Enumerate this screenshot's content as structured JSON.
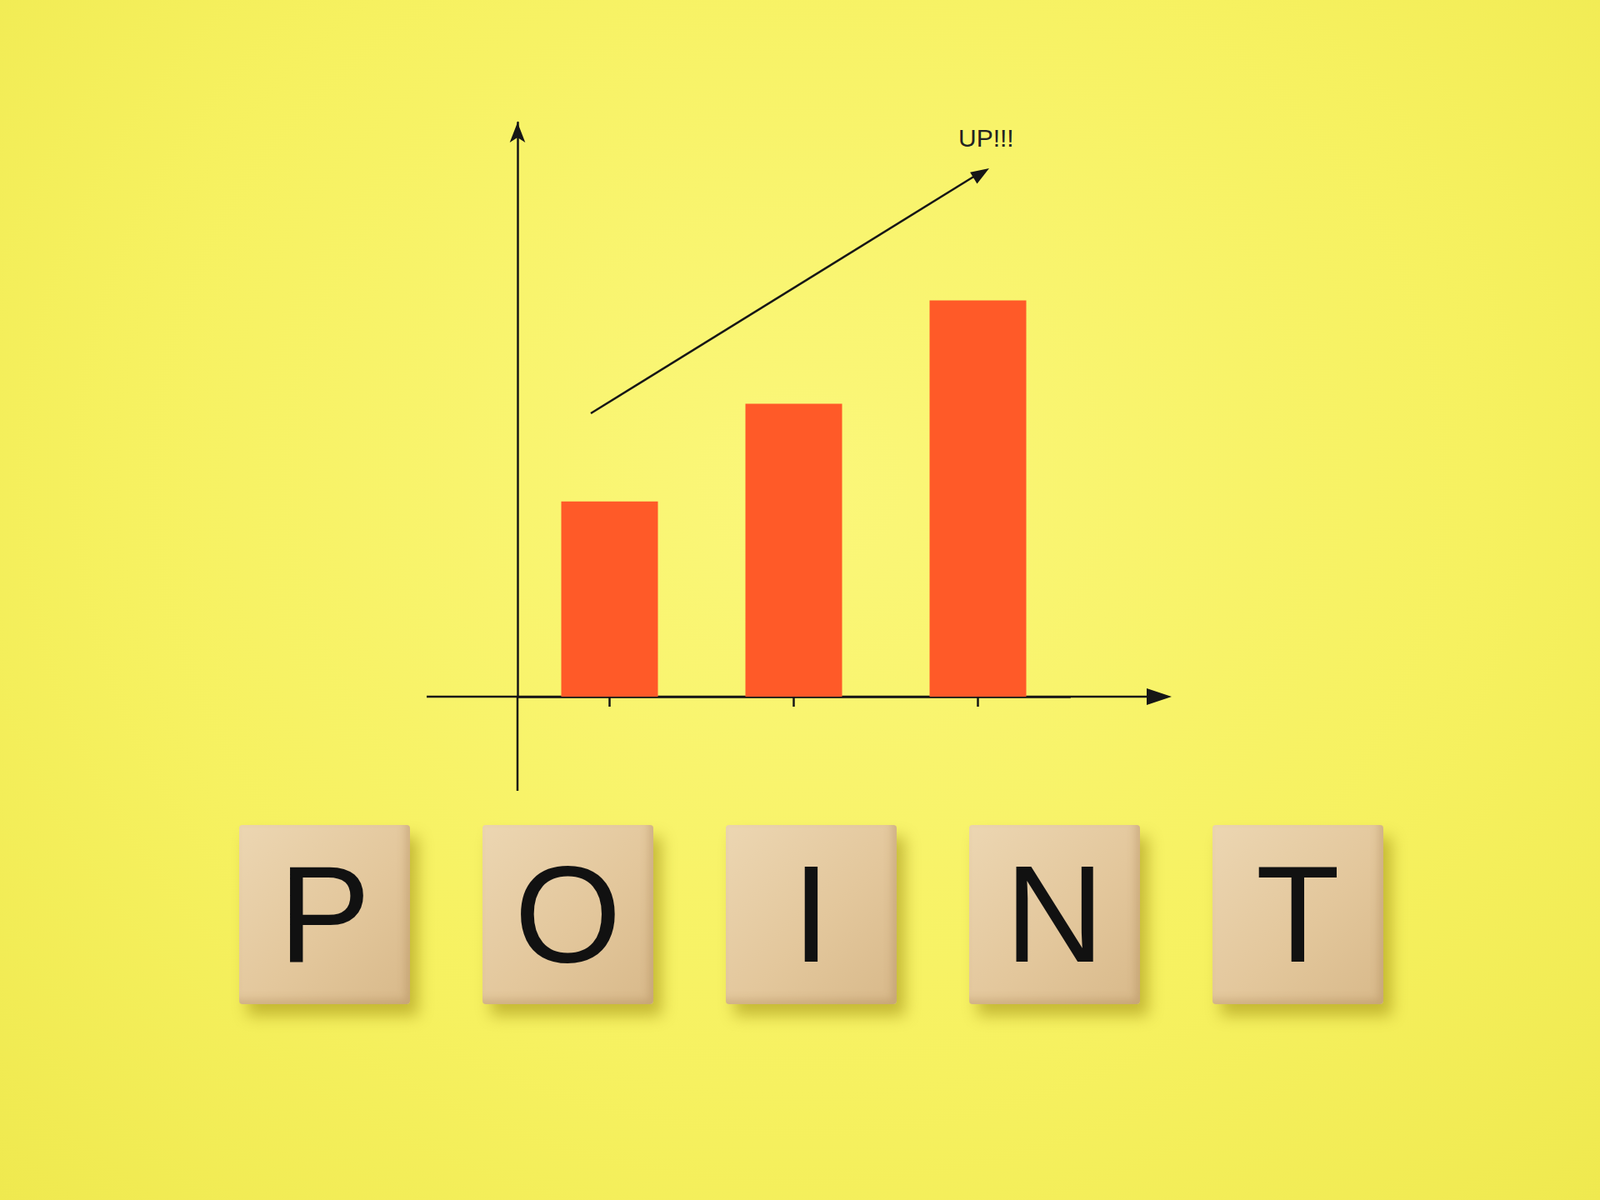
{
  "chart_data": {
    "type": "bar",
    "title": "POINT",
    "annotations": [
      {
        "text": "UP!!!"
      }
    ],
    "categories": [
      null,
      null,
      null
    ],
    "values": [
      34,
      51,
      69
    ],
    "color": "#ff5a28",
    "ylim": [
      0,
      100
    ],
    "yticks": [],
    "grid": false,
    "tick_labels": false
  }
}
